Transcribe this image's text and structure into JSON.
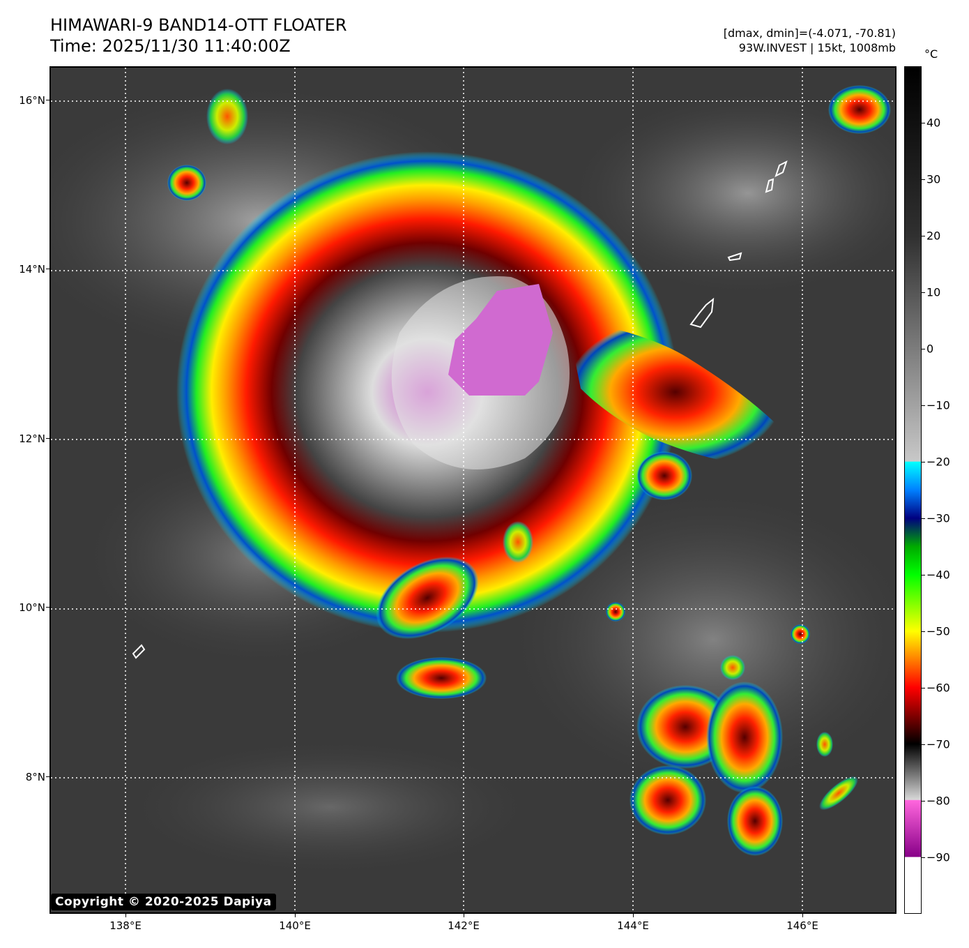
{
  "header": {
    "title": "HIMAWARI-9 BAND14-OTT FLOATER",
    "time": "Time: 2025/11/30 11:40:00Z",
    "range": "[dmax, dmin]=(-4.071, -70.81)",
    "storm": "93W.INVEST | 15kt, 1008mb"
  },
  "axes": {
    "lat_labels": [
      "16°N",
      "14°N",
      "12°N",
      "10°N",
      "8°N"
    ],
    "lon_labels": [
      "138°E",
      "140°E",
      "142°E",
      "144°E",
      "146°E"
    ]
  },
  "colorbar": {
    "unit": "°C",
    "ticks": [
      "40",
      "30",
      "20",
      "10",
      "0",
      "−10",
      "−20",
      "−30",
      "−40",
      "−50",
      "−60",
      "−70",
      "−80",
      "−90"
    ],
    "range_c": [
      -100,
      50
    ],
    "stops": [
      {
        "t": 50,
        "color": "#000000"
      },
      {
        "t": 20,
        "color": "#303030"
      },
      {
        "t": -19.9,
        "color": "#c8c8c8"
      },
      {
        "t": -20,
        "color": "#00ffff"
      },
      {
        "t": -25,
        "color": "#0080ff"
      },
      {
        "t": -30,
        "color": "#000080"
      },
      {
        "t": -35,
        "color": "#00aa00"
      },
      {
        "t": -40,
        "color": "#00ff00"
      },
      {
        "t": -50,
        "color": "#ffff00"
      },
      {
        "t": -55,
        "color": "#ff8000"
      },
      {
        "t": -60,
        "color": "#ff0000"
      },
      {
        "t": -65,
        "color": "#800000"
      },
      {
        "t": -70,
        "color": "#000000"
      },
      {
        "t": -79.9,
        "color": "#d8d8d8"
      },
      {
        "t": -80,
        "color": "#ff66dd"
      },
      {
        "t": -90,
        "color": "#880088"
      },
      {
        "t": -90.1,
        "color": "#ffffff"
      },
      {
        "t": -100,
        "color": "#ffffff"
      }
    ]
  },
  "copyright": "Copyright © 2020-2025 Dapiya"
}
